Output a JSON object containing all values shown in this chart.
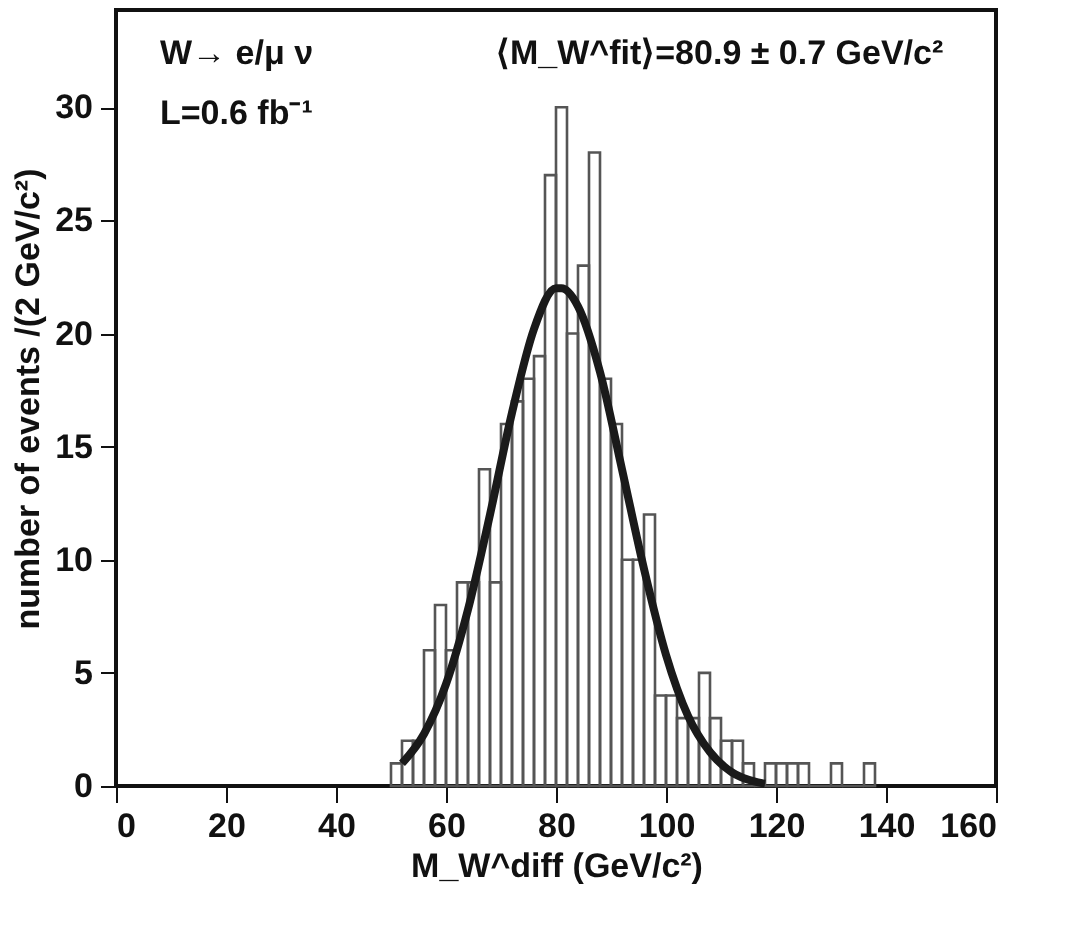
{
  "chart_data": {
    "type": "histogram",
    "xlabel": "M_W^diff (GeV/c²)",
    "ylabel": "number of events /(2 GeV/c²)",
    "annotations": [
      "W→ e/μ ν",
      "L=0.6 fb⁻¹",
      "⟨M_W^fit⟩=80.9 ± 0.7 GeV/c²"
    ],
    "bins": [
      50,
      52,
      54,
      56,
      58,
      60,
      62,
      64,
      66,
      68,
      70,
      72,
      74,
      76,
      78,
      80,
      82,
      84,
      86,
      88,
      90,
      92,
      94,
      96,
      98,
      100,
      102,
      104,
      106,
      108,
      110,
      112,
      114,
      116,
      118,
      120,
      122,
      124,
      126,
      128,
      130,
      132,
      134,
      136,
      138
    ],
    "values": [
      1,
      2,
      2,
      6,
      8,
      6,
      9,
      9,
      14,
      9,
      16,
      17,
      18,
      19,
      27,
      30,
      20,
      23,
      28,
      18,
      16,
      10,
      10,
      12,
      4,
      4,
      3,
      3,
      5,
      3,
      2,
      2,
      1,
      0,
      1,
      1,
      1,
      1,
      0,
      0,
      1,
      0,
      0,
      1
    ],
    "color": "#555555",
    "series": [
      {
        "type": "line",
        "color": "#1a1a1a",
        "x": [
          52,
          56,
          60,
          64,
          68,
          72,
          76,
          80,
          81,
          84,
          88,
          92,
          96,
          100,
          104,
          108,
          112,
          116,
          118
        ],
        "values": [
          1.0,
          2.3,
          4.5,
          7.8,
          12.0,
          16.5,
          20.2,
          22.0,
          22.0,
          21.2,
          18.3,
          14.0,
          9.6,
          5.8,
          3.1,
          1.5,
          0.6,
          0.2,
          0.1
        ]
      }
    ],
    "xlim": [
      0,
      160
    ],
    "xticks": [
      0,
      20,
      40,
      60,
      80,
      100,
      120,
      140,
      160
    ],
    "ylim": [
      0,
      34.3
    ],
    "yticks": [
      0,
      5,
      10,
      15,
      20,
      25,
      30
    ],
    "grid": false
  }
}
